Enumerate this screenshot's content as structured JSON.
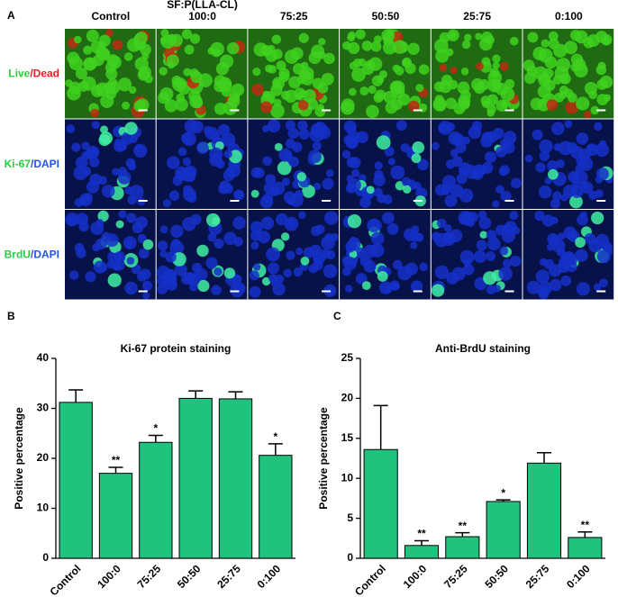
{
  "panel_a": {
    "label": "A",
    "group_label": "SF:P(LLA-CL)",
    "columns": [
      "Control",
      "100:0",
      "75:25",
      "50:50",
      "25:75",
      "0:100"
    ],
    "rows": [
      [
        {
          "text": "Live",
          "color": "#2ecc40"
        },
        {
          "text": "/",
          "color": "#e02020"
        },
        {
          "text": "Dead",
          "color": "#e02020"
        }
      ],
      [
        {
          "text": "Ki-67",
          "color": "#2ecc40"
        },
        {
          "text": "/",
          "color": "#2255ee"
        },
        {
          "text": "DAPI",
          "color": "#2255ee"
        }
      ],
      [
        {
          "text": "BrdU",
          "color": "#2ecc40"
        },
        {
          "text": "/",
          "color": "#2255ee"
        },
        {
          "text": "DAPI",
          "color": "#2255ee"
        }
      ]
    ]
  },
  "chart_data": [
    {
      "type": "bar",
      "panel": "B",
      "title": "Ki-67 protein staining",
      "y_label": "Positive percentage",
      "categories": [
        "Control",
        "100:0",
        "75:25",
        "50:50",
        "25:75",
        "0:100"
      ],
      "values": [
        31.2,
        17,
        23.2,
        32,
        31.9,
        20.6
      ],
      "errors": [
        2.5,
        1.2,
        1.4,
        1.5,
        1.4,
        2.3
      ],
      "significance": [
        null,
        "**",
        "*",
        null,
        null,
        "*"
      ],
      "color": "#21c17e",
      "ylim": [
        0,
        40
      ],
      "yticks": [
        0,
        10,
        20,
        30,
        40
      ]
    },
    {
      "type": "bar",
      "panel": "C",
      "title": "Anti-BrdU staining",
      "y_label": "Positive percentage",
      "categories": [
        "Control",
        "100:0",
        "75:25",
        "50:50",
        "25:75",
        "0:100"
      ],
      "values": [
        13.6,
        1.6,
        2.7,
        7.1,
        11.9,
        2.6
      ],
      "errors": [
        5.5,
        0.6,
        0.5,
        0.2,
        1.3,
        0.7
      ],
      "significance": [
        null,
        "**",
        "**",
        "*",
        null,
        "**"
      ],
      "color": "#21c17e",
      "ylim": [
        0,
        25
      ],
      "yticks": [
        0,
        5,
        10,
        15,
        20,
        25
      ]
    }
  ]
}
